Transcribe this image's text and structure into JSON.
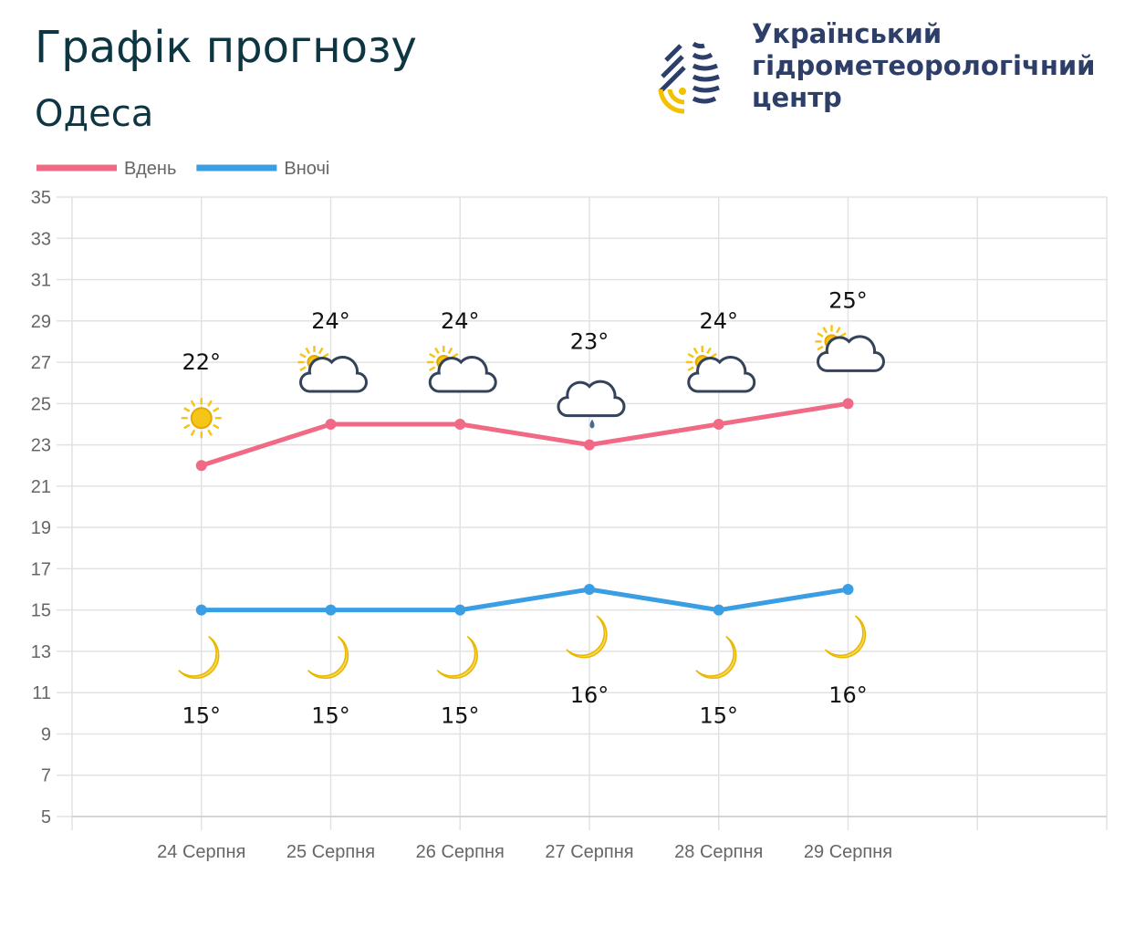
{
  "header": {
    "title": "Графік прогнозу",
    "subtitle": "Одеса"
  },
  "logo": {
    "lines": [
      "Український",
      "гідрометеорологічний",
      "центр"
    ]
  },
  "chart_data": {
    "type": "line",
    "categories": [
      "24 Серпня",
      "25 Серпня",
      "26 Серпня",
      "27 Серпня",
      "28 Серпня",
      "29 Серпня"
    ],
    "series": [
      {
        "name": "Вдень",
        "color": "#f06a85",
        "values": [
          22,
          24,
          24,
          23,
          24,
          25
        ],
        "value_labels": [
          "22°",
          "24°",
          "24°",
          "23°",
          "24°",
          "25°"
        ]
      },
      {
        "name": "Вночі",
        "color": "#3a9ee4",
        "values": [
          15,
          15,
          15,
          16,
          15,
          16
        ],
        "value_labels": [
          "15°",
          "15°",
          "15°",
          "16°",
          "15°",
          "16°"
        ]
      }
    ],
    "ylim": [
      5,
      35
    ],
    "yticks": [
      5,
      7,
      9,
      11,
      13,
      15,
      17,
      19,
      21,
      23,
      25,
      27,
      29,
      31,
      33,
      35
    ],
    "grid": true,
    "legend": "top-left"
  }
}
